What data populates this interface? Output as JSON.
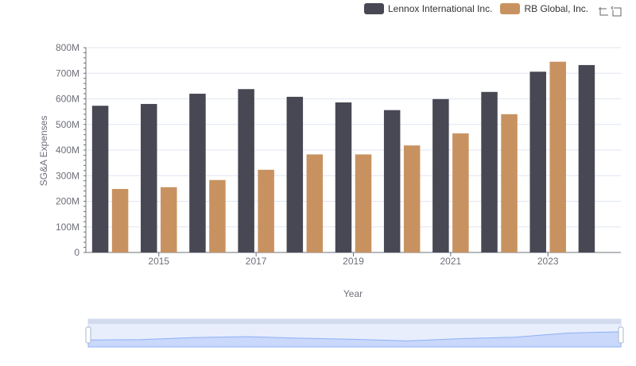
{
  "legend": {
    "items": [
      {
        "label": "Lennox International Inc.",
        "color": "#484854"
      },
      {
        "label": "RB Global, Inc.",
        "color": "#c89260"
      }
    ]
  },
  "toolbox": {
    "icons": [
      "zoom-icon",
      "restore-icon"
    ]
  },
  "chart_data": {
    "type": "bar",
    "xlabel": "Year",
    "ylabel": "SG&A Expenses",
    "categories": [
      "2014",
      "2015",
      "2016",
      "2017",
      "2018",
      "2019",
      "2020",
      "2021",
      "2022",
      "2023",
      "2024"
    ],
    "x_tick_labels": [
      "2015",
      "2017",
      "2019",
      "2021",
      "2023"
    ],
    "y_tick_labels": [
      "0",
      "100M",
      "200M",
      "300M",
      "400M",
      "500M",
      "600M",
      "700M",
      "800M"
    ],
    "ylim": [
      0,
      800000000
    ],
    "grid": true,
    "legend_position": "top-right",
    "series": [
      {
        "name": "Lennox International Inc.",
        "color": "#484854",
        "values": [
          573000000,
          580000000,
          620000000,
          638000000,
          608000000,
          586000000,
          556000000,
          599000000,
          627000000,
          706000000,
          732000000
        ]
      },
      {
        "name": "RB Global, Inc.",
        "color": "#c89260",
        "values": [
          248000000,
          255000000,
          283000000,
          323000000,
          383000000,
          383000000,
          418000000,
          465000000,
          540000000,
          745000000,
          null
        ]
      }
    ]
  }
}
